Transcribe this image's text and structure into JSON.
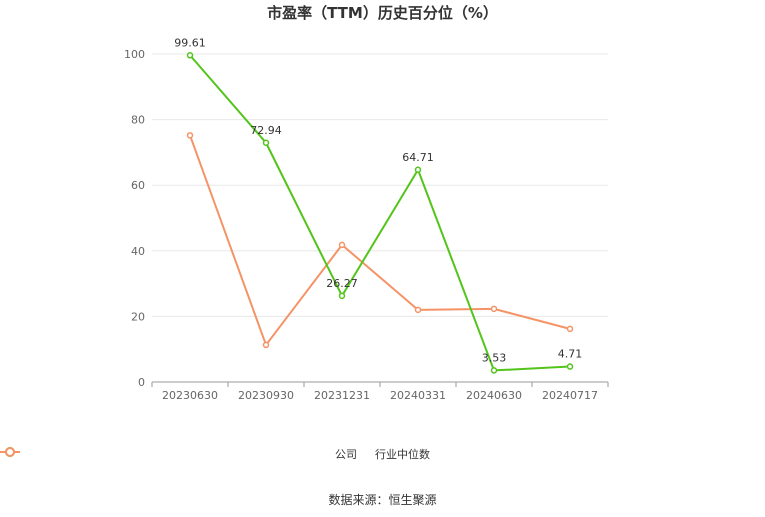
{
  "chart_data": {
    "type": "line",
    "title": "市盈率（TTM）历史百分位（%）",
    "categories": [
      "20230630",
      "20230930",
      "20231231",
      "20240331",
      "20240630",
      "20240717"
    ],
    "series": [
      {
        "name": "公司",
        "values": [
          99.61,
          72.94,
          26.27,
          64.71,
          3.53,
          4.71
        ],
        "color": "#52c41a",
        "show_labels": true
      },
      {
        "name": "行业中位数",
        "values": [
          75.2,
          11.3,
          41.8,
          22.0,
          22.3,
          16.2
        ],
        "color": "#f59367",
        "show_labels": false
      }
    ],
    "ylim": [
      0,
      100
    ],
    "yticks": [
      0,
      20,
      40,
      60,
      80,
      100
    ],
    "grid": true,
    "legend_position": "bottom"
  },
  "source": "数据来源：恒生聚源"
}
